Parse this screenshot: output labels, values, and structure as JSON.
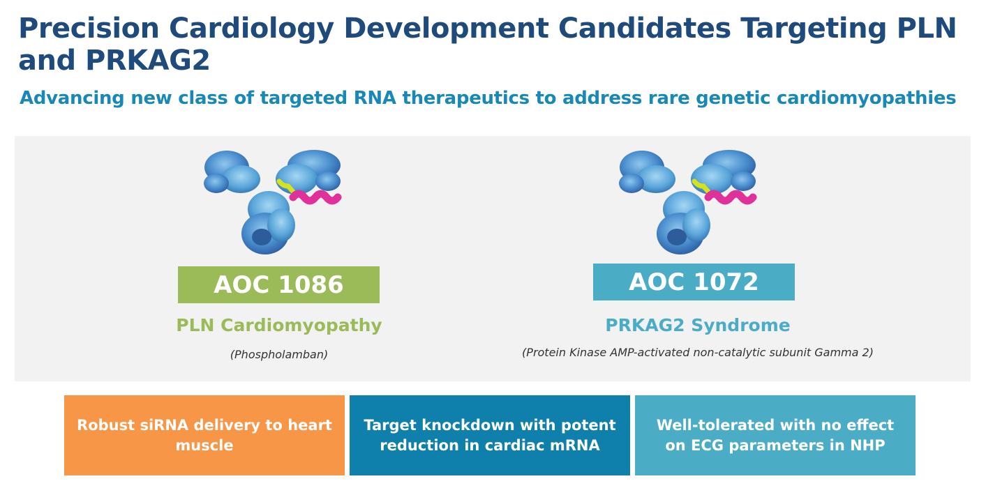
{
  "header": {
    "title": "Precision Cardiology Development Candidates Targeting PLN and PRKAG2",
    "subtitle": "Advancing new class of targeted RNA therapeutics to address rare genetic cardiomyopathies"
  },
  "candidates": [
    {
      "code": "AOC 1086",
      "name": "PLN Cardiomyopathy",
      "full_name": "(Phospholamban)",
      "color": "#9bbb59",
      "molecule_icon": "antibody-oligonucleotide-conjugate-icon"
    },
    {
      "code": "AOC 1072",
      "name": "PRKAG2 Syndrome",
      "full_name": "(Protein Kinase AMP-activated non-catalytic subunit Gamma 2)",
      "color": "#4bacc6",
      "molecule_icon": "antibody-oligonucleotide-conjugate-icon"
    }
  ],
  "features": [
    {
      "text": "Robust siRNA delivery to heart muscle",
      "color": "#f79646"
    },
    {
      "text": "Target knockdown with potent reduction in cardiac mRNA",
      "color": "#0f7fab"
    },
    {
      "text": "Well-tolerated with no effect on ECG parameters in NHP",
      "color": "#4bacc6"
    }
  ],
  "colors": {
    "title": "#1e4a7c",
    "subtitle": "#1788b8",
    "panel_background": "#f2f2f2",
    "antibody_blue": "#3f7fbd",
    "linker_yellow": "#d6e21c",
    "rna_magenta": "#e0309a"
  }
}
